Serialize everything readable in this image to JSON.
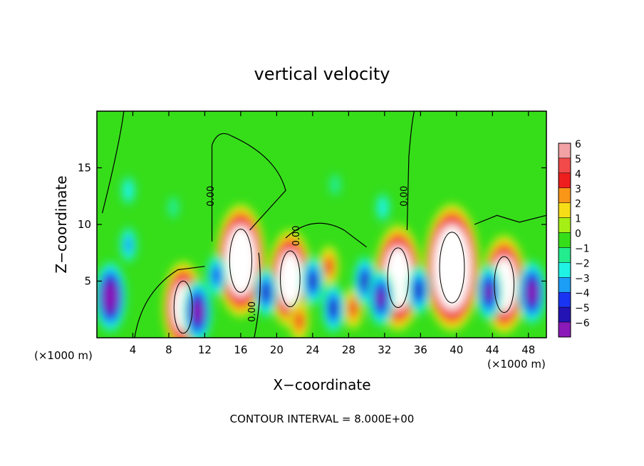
{
  "chart_data": {
    "type": "heatmap",
    "title": "vertical velocity",
    "xlabel": "X−coordinate",
    "ylabel": "Z−coordinate",
    "x_units_left": "(×1000 m)",
    "x_units_right": "(×1000 m)",
    "footer": "CONTOUR INTERVAL = 8.000E+00",
    "xlim": [
      0,
      50
    ],
    "ylim": [
      0,
      20
    ],
    "x_ticks": [
      {
        "value": 4,
        "label": "4"
      },
      {
        "value": 8,
        "label": "8"
      },
      {
        "value": 12,
        "label": "12"
      },
      {
        "value": 16,
        "label": "16"
      },
      {
        "value": 20,
        "label": "20"
      },
      {
        "value": 24,
        "label": "24"
      },
      {
        "value": 28,
        "label": "28"
      },
      {
        "value": 32,
        "label": "32"
      },
      {
        "value": 36,
        "label": "36"
      },
      {
        "value": 40,
        "label": "40"
      },
      {
        "value": 44,
        "label": "44"
      },
      {
        "value": 48,
        "label": "48"
      }
    ],
    "y_ticks": [
      {
        "value": 5,
        "label": "5"
      },
      {
        "value": 10,
        "label": "10"
      },
      {
        "value": 15,
        "label": "15"
      }
    ],
    "colorbar": {
      "levels": [
        {
          "label": "6",
          "color": "#f2a1a5"
        },
        {
          "label": "5",
          "color": "#f24a4a"
        },
        {
          "label": "4",
          "color": "#ef1e1e"
        },
        {
          "label": "3",
          "color": "#f99618"
        },
        {
          "label": "2",
          "color": "#f6dd17"
        },
        {
          "label": "1",
          "color": "#a6ef16"
        },
        {
          "label": "0",
          "color": "#36de1a"
        },
        {
          "label": "−1",
          "color": "#22ec8d"
        },
        {
          "label": "−2",
          "color": "#1ff3e4"
        },
        {
          "label": "−3",
          "color": "#1c9ef7"
        },
        {
          "label": "−4",
          "color": "#1a34f4"
        },
        {
          "label": "−5",
          "color": "#2413b4"
        },
        {
          "label": "−6",
          "color": "#8b19b8"
        }
      ],
      "over_color": "#ffffff"
    },
    "contour_labels": [
      {
        "text": "0.00",
        "x": 13.0,
        "y": 12.5,
        "angle": -90
      },
      {
        "text": "0.00",
        "x": 17.6,
        "y": 2.3,
        "angle": -90
      },
      {
        "text": "0.00",
        "x": 22.5,
        "y": 9.0,
        "angle": -90
      },
      {
        "text": "0.00",
        "x": 34.5,
        "y": 12.5,
        "angle": -90
      }
    ],
    "updrafts": [
      {
        "x": 16.0,
        "z": 6.8,
        "w": 14
      },
      {
        "x": 9.6,
        "z": 2.7,
        "w": 11
      },
      {
        "x": 21.5,
        "z": 5.2,
        "w": 12
      },
      {
        "x": 33.5,
        "z": 5.3,
        "w": 13
      },
      {
        "x": 39.5,
        "z": 6.2,
        "w": 16
      },
      {
        "x": 45.3,
        "z": 4.7,
        "w": 12
      },
      {
        "x": 22.5,
        "z": 1.5,
        "w": 4
      },
      {
        "x": 25.8,
        "z": 6.3,
        "w": 4
      },
      {
        "x": 28.5,
        "z": 2.6,
        "w": 4
      },
      {
        "x": 1.5,
        "z": 3.6,
        "w": -8
      },
      {
        "x": 11.2,
        "z": 2.3,
        "w": -7
      },
      {
        "x": 13.3,
        "z": 5.5,
        "w": -4
      },
      {
        "x": 18.8,
        "z": 4.0,
        "w": -5
      },
      {
        "x": 24.0,
        "z": 5.0,
        "w": -5
      },
      {
        "x": 26.3,
        "z": 2.6,
        "w": -5
      },
      {
        "x": 29.8,
        "z": 5.0,
        "w": -5
      },
      {
        "x": 31.6,
        "z": 3.5,
        "w": -6
      },
      {
        "x": 35.8,
        "z": 4.2,
        "w": -5
      },
      {
        "x": 43.6,
        "z": 4.0,
        "w": -6
      },
      {
        "x": 48.4,
        "z": 4.0,
        "w": -7
      },
      {
        "x": 3.5,
        "z": 8.2,
        "w": -3
      },
      {
        "x": 3.5,
        "z": 13.0,
        "w": -2
      },
      {
        "x": 31.8,
        "z": 11.5,
        "w": -2
      },
      {
        "x": 26.5,
        "z": 13.5,
        "w": -1
      },
      {
        "x": 8.5,
        "z": 11.5,
        "w": -1
      }
    ]
  }
}
